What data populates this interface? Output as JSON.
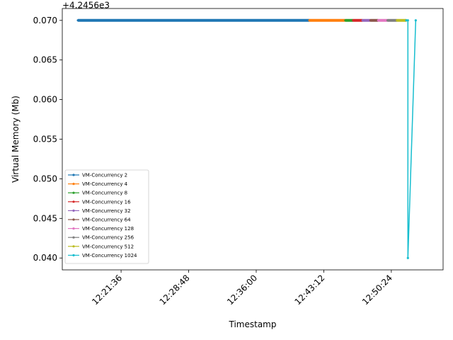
{
  "chart_data": {
    "type": "line",
    "title": "",
    "xlabel": "Timestamp",
    "ylabel": "Virtual Memory (Mb)",
    "offset_label": "+4.2456e3",
    "x_unit": "time",
    "xlim": [
      "12:15:20",
      "12:55:55"
    ],
    "ylim": [
      0.0385,
      0.0715
    ],
    "x_ticks": [
      "12:21:36",
      "12:28:48",
      "12:36:00",
      "12:43:12",
      "12:50:24"
    ],
    "y_ticks": [
      "0.040",
      "0.045",
      "0.050",
      "0.055",
      "0.060",
      "0.065",
      "0.070"
    ],
    "grid": false,
    "legend_position": "lower-left",
    "series": [
      {
        "name": "VM-Concurrency 2",
        "color": "#1f77b4",
        "x": [
          "12:17:00",
          "12:41:40"
        ],
        "y": [
          0.07,
          0.07
        ]
      },
      {
        "name": "VM-Concurrency 4",
        "color": "#ff7f0e",
        "x": [
          "12:41:40",
          "12:45:30"
        ],
        "y": [
          0.07,
          0.07
        ]
      },
      {
        "name": "VM-Concurrency 8",
        "color": "#2ca02c",
        "x": [
          "12:45:30",
          "12:46:20"
        ],
        "y": [
          0.07,
          0.07
        ]
      },
      {
        "name": "VM-Concurrency 16",
        "color": "#d62728",
        "x": [
          "12:46:20",
          "12:47:20"
        ],
        "y": [
          0.07,
          0.07
        ]
      },
      {
        "name": "VM-Concurrency 32",
        "color": "#9467bd",
        "x": [
          "12:47:20",
          "12:48:10"
        ],
        "y": [
          0.07,
          0.07
        ]
      },
      {
        "name": "VM-Concurrency 64",
        "color": "#8c564b",
        "x": [
          "12:48:10",
          "12:49:00"
        ],
        "y": [
          0.07,
          0.07
        ]
      },
      {
        "name": "VM-Concurrency 128",
        "color": "#e377c2",
        "x": [
          "12:49:00",
          "12:50:00"
        ],
        "y": [
          0.07,
          0.07
        ]
      },
      {
        "name": "VM-Concurrency 256",
        "color": "#7f7f7f",
        "x": [
          "12:50:00",
          "12:51:00"
        ],
        "y": [
          0.07,
          0.07
        ]
      },
      {
        "name": "VM-Concurrency 512",
        "color": "#bcbd22",
        "x": [
          "12:51:00",
          "12:52:00"
        ],
        "y": [
          0.07,
          0.07
        ]
      },
      {
        "name": "VM-Concurrency 1024",
        "color": "#17becf",
        "x": [
          "12:52:00",
          "12:52:10",
          "12:52:10",
          "12:53:00"
        ],
        "y": [
          0.07,
          0.07,
          0.04,
          0.07
        ]
      }
    ]
  }
}
